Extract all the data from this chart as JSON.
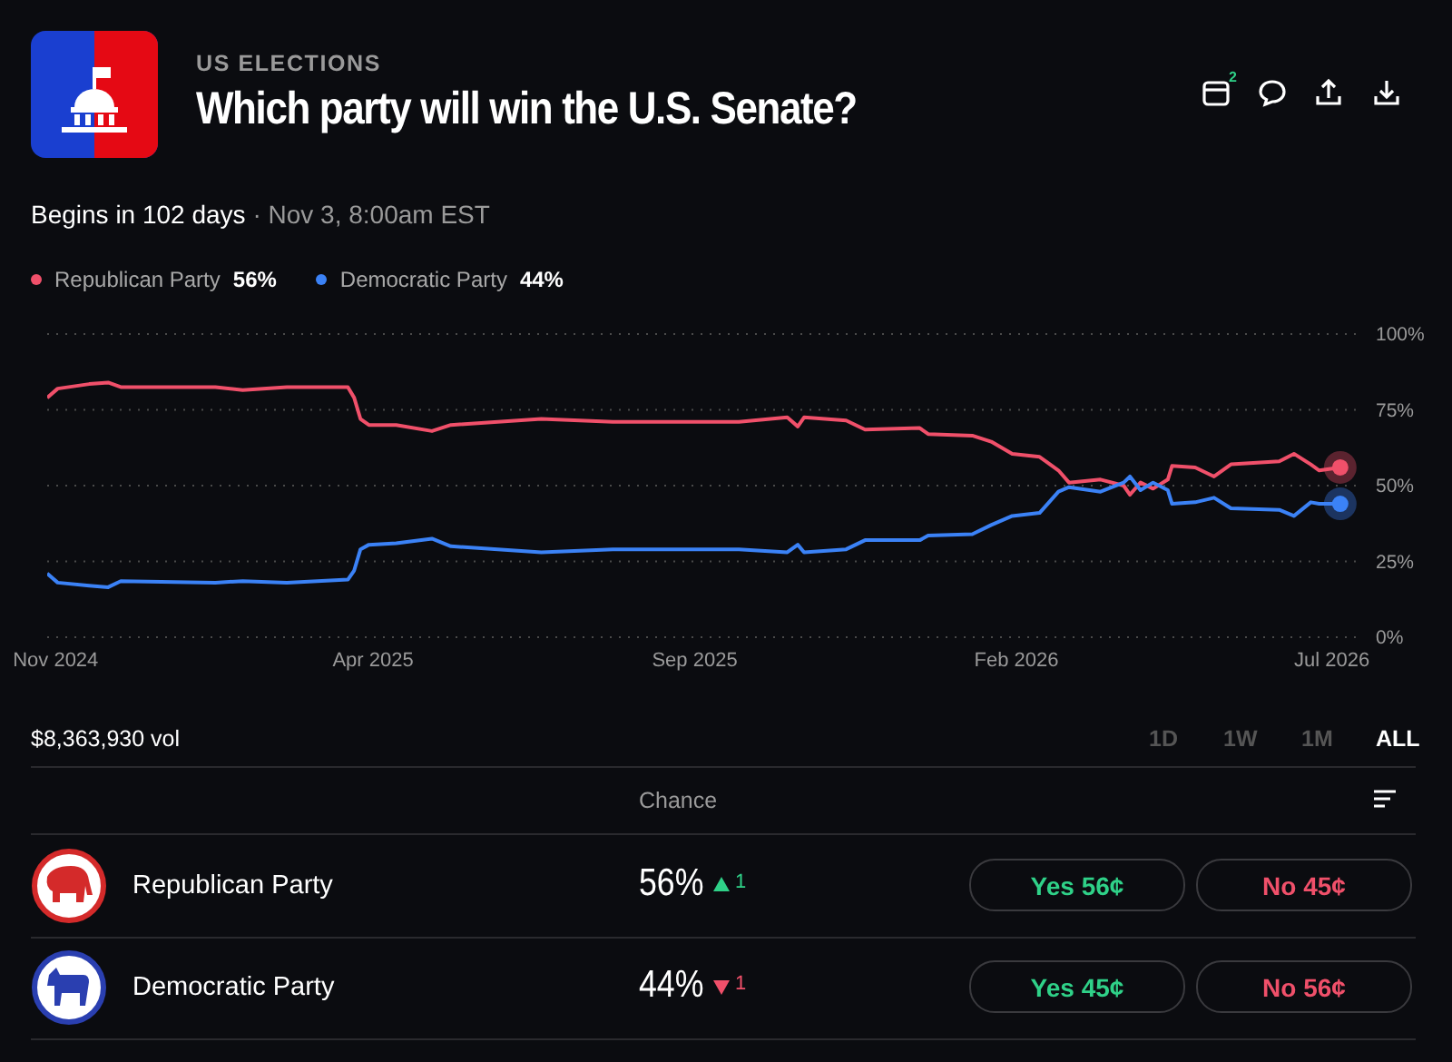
{
  "chart_data": {
    "type": "line",
    "title": "Which party will win the U.S. Senate?",
    "annotations": [
      "US ELECTIONS",
      "Begins in 102 days",
      "· Nov 3, 8:00am EST",
      "56%",
      "44%",
      "$8,363,930 vol",
      "1D",
      "1W",
      "1M",
      "ALL",
      "Chance",
      "56%",
      "1",
      "Yes 56¢",
      "No 45¢",
      "44%",
      "1",
      "Yes 45¢",
      "No 56¢",
      "2"
    ],
    "x": [
      "2024-10-28",
      "2024-11-02",
      "2024-11-17",
      "2024-11-26",
      "2024-12-02",
      "2025-01-16",
      "2025-01-29",
      "2025-02-19",
      "2025-03-20",
      "2025-03-23",
      "2025-03-26",
      "2025-03-30",
      "2025-04-12",
      "2025-04-29",
      "2025-05-08",
      "2025-06-20",
      "2025-07-24",
      "2025-09-22",
      "2025-10-15",
      "2025-10-20",
      "2025-10-23",
      "2025-11-12",
      "2025-11-21",
      "2025-12-17",
      "2025-12-21",
      "2026-01-11",
      "2026-01-20",
      "2026-01-30",
      "2026-02-12",
      "2026-02-21",
      "2026-02-26",
      "2026-03-13",
      "2026-03-24",
      "2026-03-27",
      "2026-04-01",
      "2026-04-07",
      "2026-04-14",
      "2026-04-16",
      "2026-04-27",
      "2026-05-06",
      "2026-05-14",
      "2026-06-06",
      "2026-06-13",
      "2026-06-21",
      "2026-06-25",
      "2026-07-05"
    ],
    "series": [
      {
        "name": "Republican Party",
        "color": "#f0506a",
        "values": [
          79,
          82,
          83.5,
          84,
          82.5,
          82.5,
          81.5,
          82.5,
          82.5,
          79,
          72,
          70,
          70,
          68,
          70,
          72,
          71,
          71,
          72.5,
          69.5,
          72.5,
          71.5,
          68.5,
          69,
          67,
          66.5,
          64.5,
          60.5,
          59.5,
          55,
          51,
          52,
          50,
          47,
          51,
          49,
          52,
          56.5,
          56,
          53,
          57,
          58,
          60.5,
          57,
          55,
          56
        ]
      },
      {
        "name": "Democratic Party",
        "color": "#3b82f6",
        "values": [
          21,
          18,
          17,
          16.5,
          18.5,
          18,
          18.5,
          18,
          19,
          22,
          29,
          30.5,
          31,
          32.5,
          30,
          28,
          29,
          29,
          28,
          30.5,
          28,
          29,
          32,
          32,
          33.5,
          34,
          37,
          40,
          41,
          48,
          49.5,
          48,
          51,
          53,
          48.5,
          51,
          48.5,
          44,
          44.5,
          46,
          42.5,
          42,
          40,
          44.5,
          44,
          44
        ]
      }
    ],
    "xlim": [
      "2024-10-28",
      "2026-07-15"
    ],
    "xticks": [
      {
        "value": "2024-11-01",
        "label": "Nov 2024"
      },
      {
        "value": "2025-04-01",
        "label": "Apr 2025"
      },
      {
        "value": "2025-09-01",
        "label": "Sep 2025"
      },
      {
        "value": "2026-02-01",
        "label": "Feb 2026"
      },
      {
        "value": "2026-07-01",
        "label": "Jul 2026"
      }
    ],
    "ylim": [
      0,
      100
    ],
    "yticks": [
      {
        "value": 0,
        "label": "0%"
      },
      {
        "value": 25,
        "label": "25%"
      },
      {
        "value": 50,
        "label": "50%"
      },
      {
        "value": 75,
        "label": "75%"
      },
      {
        "value": 100,
        "label": "100%"
      }
    ],
    "grid": "y",
    "legend": "top left",
    "marker": "none",
    "line_style": "solid"
  }
}
